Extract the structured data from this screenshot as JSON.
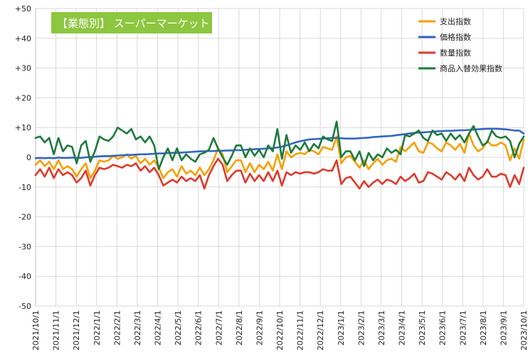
{
  "chart_data": {
    "type": "line",
    "title": "【業態別】 スーパーマーケット",
    "title_bg_color": "#8DC63F",
    "y_ticks": [
      "+50",
      "+40",
      "+30",
      "+20",
      "+10",
      "0",
      "-10",
      "-20",
      "-30",
      "-40",
      "-50"
    ],
    "ylim": [
      -50,
      50
    ],
    "x_ticks": [
      "2021/10/1",
      "2021/11/1",
      "2021/12/1",
      "2022/1/1",
      "2022/2/1",
      "2022/3/1",
      "2022/4/1",
      "2022/5/1",
      "2022/6/1",
      "2022/7/1",
      "2022/8/1",
      "2022/9/1",
      "2022/10/1",
      "2022/11/1",
      "2022/12/1",
      "2023/1/1",
      "2023/2/1",
      "2023/3/1",
      "2023/4/1",
      "2023/5/1",
      "2023/6/1",
      "2023/7/1",
      "2023/8/1",
      "2023/9/1",
      "2023/10/1"
    ],
    "grid": true,
    "legend_position": "top-right",
    "series": [
      {
        "name": "支出指数",
        "color": "#F5A000",
        "values": [
          -2.5,
          -1.0,
          -3.0,
          -1.5,
          -4.0,
          -1.0,
          -4.0,
          -3.0,
          -4.0,
          -6.5,
          -4.0,
          -2.0,
          -7.0,
          -4.5,
          -1.0,
          -1.5,
          -1.0,
          0.5,
          -0.5,
          0.0,
          1.0,
          -0.5,
          0.5,
          -2.0,
          -0.5,
          -2.5,
          -1.0,
          -3.5,
          -7.0,
          -5.0,
          -4.0,
          -6.5,
          -3.0,
          -5.5,
          -4.5,
          -6.0,
          -3.5,
          -6.0,
          -4.0,
          -1.0,
          3.0,
          1.0,
          -5.0,
          -3.0,
          -1.0,
          -1.0,
          -5.0,
          -2.0,
          -5.0,
          -2.5,
          -4.0,
          -1.5,
          -4.5,
          1.0,
          -4.0,
          2.0,
          0.0,
          1.0,
          1.5,
          1.0,
          2.5,
          2.0,
          1.0,
          3.5,
          3.0,
          2.5,
          7.0,
          -2.0,
          0.0,
          0.5,
          -1.5,
          -3.5,
          -1.0,
          -4.0,
          -2.0,
          -0.5,
          -2.5,
          -1.0,
          -0.5,
          -1.5,
          3.5,
          2.0,
          3.5,
          5.0,
          2.0,
          1.5,
          5.0,
          4.5,
          3.0,
          2.0,
          5.0,
          4.0,
          2.5,
          4.5,
          1.5,
          8.0,
          4.0,
          2.0,
          3.0,
          5.5,
          4.0,
          4.0,
          5.0,
          4.0,
          -1.0,
          3.0,
          -0.5,
          6.0
        ]
      },
      {
        "name": "価格指数",
        "color": "#3366C0",
        "values": [
          -0.3,
          -0.2,
          -0.3,
          -0.2,
          -0.3,
          -0.1,
          -0.2,
          -0.2,
          -0.1,
          -0.2,
          -0.2,
          0.0,
          0.1,
          0.2,
          0.3,
          0.4,
          0.4,
          0.5,
          0.6,
          0.7,
          0.8,
          0.8,
          0.9,
          1.0,
          1.0,
          1.1,
          1.2,
          1.3,
          1.3,
          1.4,
          1.5,
          1.5,
          1.6,
          1.7,
          1.8,
          1.9,
          2.0,
          2.0,
          2.1,
          2.1,
          2.2,
          2.2,
          2.3,
          2.3,
          2.4,
          2.4,
          2.5,
          2.6,
          2.7,
          2.8,
          2.9,
          3.0,
          3.1,
          3.3,
          3.6,
          4.0,
          4.5,
          5.0,
          5.4,
          5.7,
          6.0,
          6.1,
          6.2,
          6.3,
          6.4,
          6.5,
          6.5,
          6.4,
          6.3,
          6.3,
          6.3,
          6.4,
          6.5,
          6.6,
          6.8,
          6.9,
          7.0,
          7.1,
          7.2,
          7.4,
          7.6,
          7.8,
          8.0,
          8.2,
          8.3,
          8.4,
          8.5,
          8.6,
          8.7,
          8.8,
          8.9,
          8.9,
          9.0,
          9.1,
          9.1,
          9.2,
          9.3,
          9.4,
          9.5,
          9.6,
          9.6,
          9.6,
          9.5,
          9.4,
          9.2,
          9.0,
          9.0,
          8.0
        ]
      },
      {
        "name": "数量指数",
        "color": "#E0392B",
        "values": [
          -6.0,
          -4.0,
          -6.5,
          -3.5,
          -7.0,
          -4.0,
          -6.0,
          -5.0,
          -6.0,
          -8.5,
          -7.0,
          -4.5,
          -9.5,
          -6.0,
          -3.5,
          -4.0,
          -3.5,
          -2.5,
          -3.0,
          -3.5,
          -2.5,
          -3.0,
          -2.0,
          -4.5,
          -3.0,
          -5.0,
          -3.5,
          -6.0,
          -9.5,
          -8.5,
          -7.5,
          -8.5,
          -6.5,
          -8.0,
          -7.0,
          -8.0,
          -6.0,
          -10.5,
          -6.0,
          -3.0,
          -0.5,
          -2.5,
          -8.0,
          -6.0,
          -4.5,
          -4.5,
          -8.5,
          -5.5,
          -8.0,
          -6.0,
          -8.0,
          -5.0,
          -8.0,
          -4.5,
          -9.5,
          -5.0,
          -6.0,
          -5.0,
          -5.5,
          -5.0,
          -5.0,
          -5.5,
          -5.0,
          -4.0,
          -4.5,
          -4.5,
          -1.0,
          -9.0,
          -7.0,
          -6.5,
          -8.5,
          -10.5,
          -8.0,
          -10.0,
          -8.5,
          -7.5,
          -9.0,
          -7.5,
          -8.0,
          -9.0,
          -6.5,
          -8.0,
          -7.0,
          -5.5,
          -8.5,
          -8.0,
          -5.0,
          -5.5,
          -6.5,
          -7.5,
          -5.0,
          -6.0,
          -7.5,
          -5.5,
          -8.0,
          -3.5,
          -6.0,
          -7.5,
          -6.5,
          -4.0,
          -6.5,
          -6.5,
          -5.5,
          -6.0,
          -10.0,
          -6.0,
          -9.0,
          -3.5
        ]
      },
      {
        "name": "商品入替効果指数",
        "color": "#1E7A3C",
        "values": [
          6.5,
          7.0,
          5.0,
          6.5,
          1.0,
          6.5,
          2.0,
          4.0,
          3.5,
          -2.0,
          4.0,
          5.5,
          -1.5,
          2.0,
          7.0,
          6.0,
          5.5,
          7.0,
          10.0,
          9.0,
          8.0,
          9.5,
          6.0,
          7.0,
          5.0,
          7.0,
          4.0,
          -4.0,
          0.0,
          3.0,
          -1.0,
          3.0,
          -1.0,
          1.0,
          -0.5,
          -1.5,
          1.0,
          1.5,
          2.5,
          6.5,
          3.0,
          0.0,
          -2.5,
          0.5,
          4.0,
          4.0,
          0.0,
          3.0,
          0.5,
          2.5,
          0.0,
          4.0,
          2.0,
          9.5,
          -0.5,
          7.5,
          1.5,
          4.0,
          2.5,
          5.0,
          2.0,
          4.5,
          3.0,
          7.0,
          6.0,
          5.5,
          12.0,
          0.0,
          2.0,
          2.0,
          -1.0,
          2.0,
          -3.0,
          1.5,
          -1.0,
          1.0,
          0.0,
          3.0,
          1.5,
          2.5,
          1.0,
          7.5,
          7.0,
          8.0,
          9.0,
          6.5,
          5.5,
          9.0,
          7.5,
          8.0,
          5.5,
          8.0,
          6.0,
          7.5,
          5.0,
          8.0,
          10.5,
          7.0,
          4.0,
          5.0,
          9.0,
          7.0,
          6.5,
          7.0,
          5.5,
          0.0,
          4.5,
          7.0
        ]
      }
    ]
  }
}
